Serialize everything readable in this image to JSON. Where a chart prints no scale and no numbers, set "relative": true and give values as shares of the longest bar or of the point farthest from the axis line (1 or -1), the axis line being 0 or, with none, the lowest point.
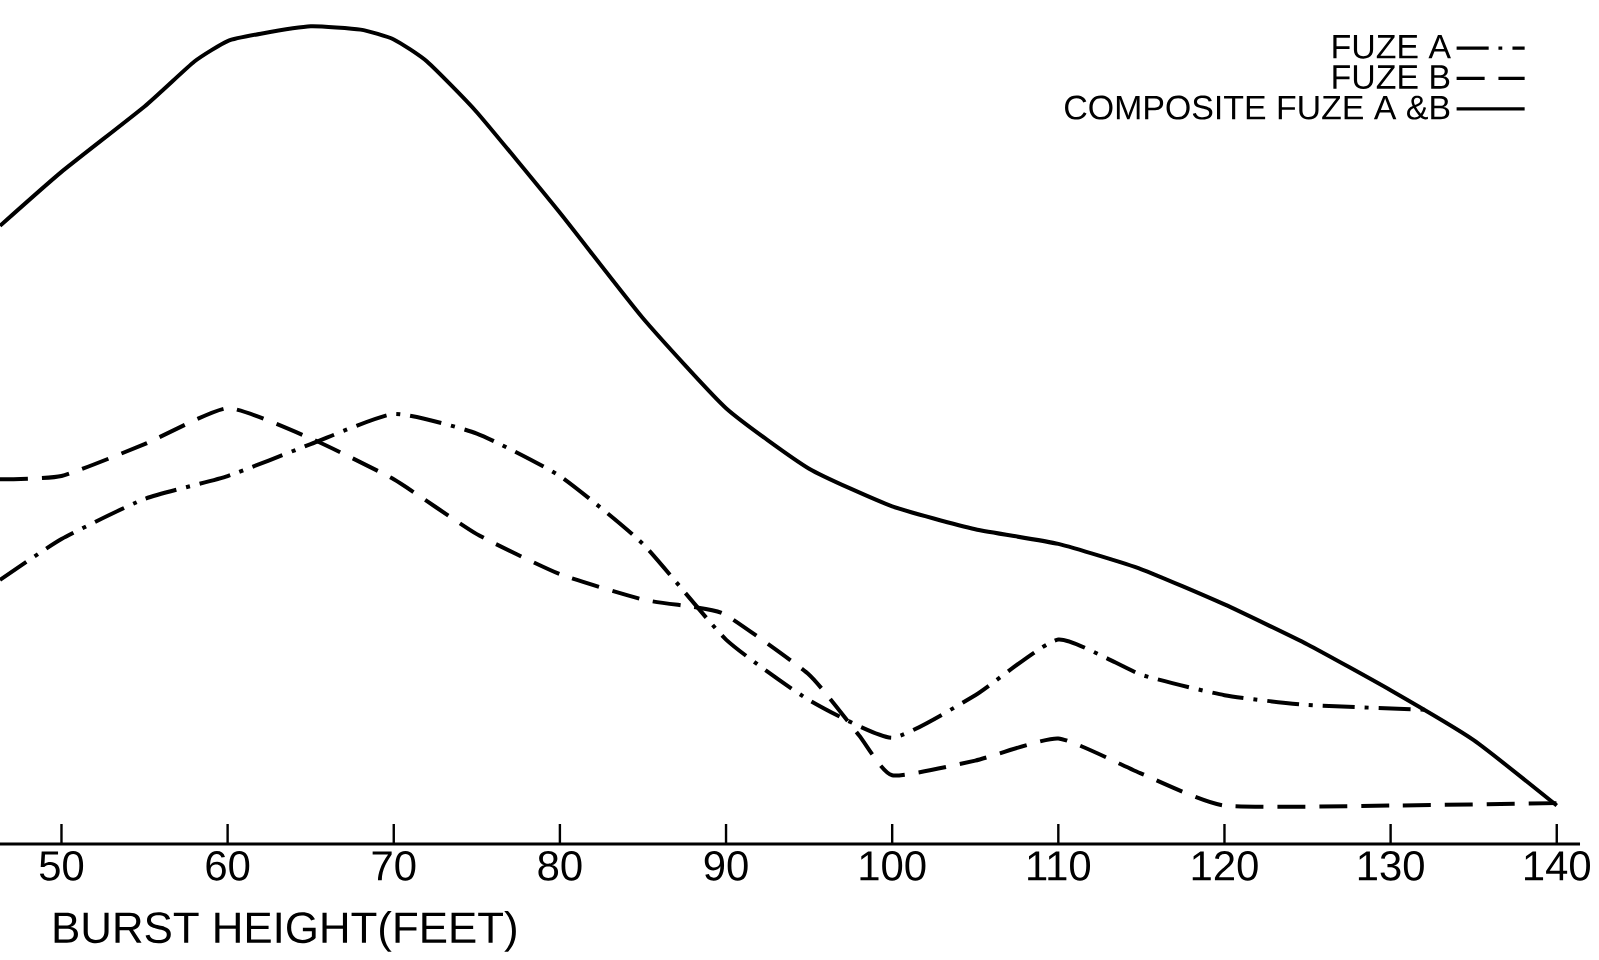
{
  "chart_data": {
    "type": "line",
    "relative": true,
    "xlabel": "BURST HEIGHT(FEET)",
    "xlim": [
      46.3,
      141.4
    ],
    "xticks": [
      50,
      60,
      70,
      80,
      90,
      100,
      110,
      120,
      130,
      140
    ],
    "legend": "top right",
    "grid": false,
    "marker": "none",
    "series": [
      {
        "name": "FUZE A",
        "color": "#000000",
        "line_style": "dashdot",
        "x": [
          46.3,
          50,
          55,
          60,
          65,
          70,
          75,
          80,
          85,
          90,
          95,
          100,
          105,
          110,
          115,
          120,
          125,
          132.5
        ],
        "values": [
          0.323,
          0.373,
          0.422,
          0.45,
          0.489,
          0.526,
          0.502,
          0.45,
          0.367,
          0.25,
          0.176,
          0.13,
          0.182,
          0.25,
          0.207,
          0.182,
          0.17,
          0.164
        ]
      },
      {
        "name": "FUZE B",
        "color": "#000000",
        "line_style": "dashed",
        "x": [
          46.3,
          50,
          55,
          60,
          65,
          70,
          75,
          80,
          85,
          88,
          90,
          95,
          98,
          100,
          105,
          110,
          115,
          120,
          130,
          140
        ],
        "values": [
          0.446,
          0.45,
          0.489,
          0.533,
          0.496,
          0.446,
          0.379,
          0.33,
          0.299,
          0.29,
          0.28,
          0.207,
          0.133,
          0.084,
          0.102,
          0.129,
          0.086,
          0.047,
          0.047,
          0.05
        ]
      },
      {
        "name": "COMPOSITE FUZE A &B",
        "color": "#000000",
        "line_style": "solid",
        "x": [
          46.3,
          50,
          55,
          58,
          60,
          62,
          65,
          68,
          70,
          72,
          75,
          80,
          85,
          90,
          95,
          100,
          105,
          110,
          115,
          120,
          125,
          130,
          135,
          140
        ],
        "values": [
          0.756,
          0.822,
          0.902,
          0.957,
          0.982,
          0.991,
          1.0,
          0.996,
          0.984,
          0.957,
          0.895,
          0.772,
          0.643,
          0.533,
          0.459,
          0.413,
          0.385,
          0.367,
          0.336,
          0.293,
          0.244,
          0.188,
          0.127,
          0.047
        ]
      }
    ]
  }
}
